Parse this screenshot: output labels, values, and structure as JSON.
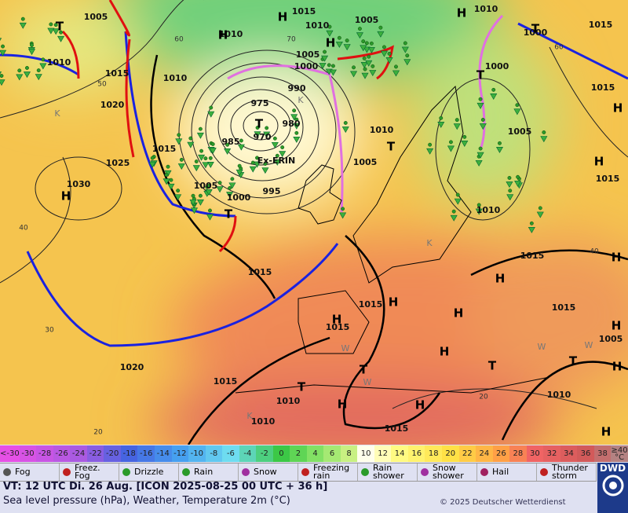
{
  "map": {
    "pressure_labels": [
      "1005",
      "1015",
      "1005",
      "1010",
      "1010",
      "1015",
      "1010",
      "1005",
      "1000",
      "1010",
      "1015",
      "1010",
      "1000",
      "1000",
      "1015",
      "1020",
      "975",
      "990",
      "980",
      "970",
      "985",
      "1015",
      "1010",
      "1005",
      "1025",
      "1005",
      "1030",
      "1005",
      "995",
      "1000",
      "1010",
      "1015",
      "1015",
      "1015",
      "1015",
      "1015",
      "1015",
      "1005",
      "1020",
      "1015",
      "1010",
      "1010",
      "1010",
      "1015"
    ],
    "system_name": "Ex-ERIN",
    "isotherm_labels": [
      "60",
      "50",
      "40",
      "30",
      "20",
      "20",
      "40",
      "60",
      "70"
    ],
    "highs": [
      "H",
      "H",
      "H",
      "H",
      "H",
      "H",
      "H",
      "H",
      "H",
      "H",
      "H",
      "H",
      "H",
      "H",
      "H",
      "H",
      "H",
      "H"
    ],
    "lows": [
      "T",
      "T",
      "T",
      "T",
      "T",
      "T",
      "T",
      "T",
      "T",
      "T"
    ],
    "temperature_marks": [
      "K",
      "K",
      "K",
      "W",
      "W",
      "W",
      "W",
      "K"
    ]
  },
  "colorbar": {
    "low_label": "<-30",
    "ticks": [
      -30,
      -28,
      -26,
      -24,
      -22,
      -20,
      -18,
      -16,
      -14,
      -12,
      -10,
      -8,
      -6,
      -4,
      -2,
      0,
      2,
      4,
      6,
      8,
      10,
      12,
      14,
      16,
      18,
      20,
      22,
      24,
      26,
      28,
      30,
      32,
      34,
      36,
      38
    ],
    "high_label": "≥40 °C"
  },
  "legend": [
    "Fog",
    "Freez. Fog",
    "Drizzle",
    "Rain",
    "Snow",
    "Freezing rain",
    "Rain shower",
    "Snow shower",
    "Hail",
    "Thunder storm"
  ],
  "footer": {
    "valid_time": "VT: 12 UTC Di.  26 Aug. [ICON 2025-08-25  00 UTC + 36 h]",
    "description": "Sea level pressure (hPa), Weather, Temperature 2m (°C)",
    "copyright": "© 2025 Deutscher Wetterdienst",
    "logo": "DWD"
  }
}
